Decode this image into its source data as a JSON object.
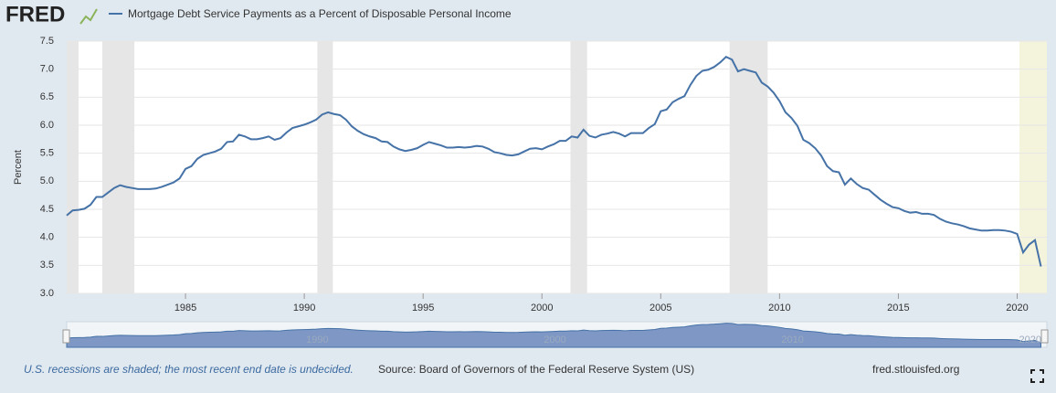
{
  "logo": "FRED",
  "chart_data": {
    "type": "line",
    "series": [
      {
        "name": "Mortgage Debt Service Payments as a Percent of Disposable Personal Income",
        "color": "#4572a7",
        "values": [
          4.39,
          4.48,
          4.49,
          4.51,
          4.58,
          4.72,
          4.72,
          4.8,
          4.88,
          4.93,
          4.9,
          4.88,
          4.86,
          4.86,
          4.86,
          4.87,
          4.9,
          4.94,
          4.98,
          5.05,
          5.22,
          5.27,
          5.4,
          5.47,
          5.5,
          5.53,
          5.58,
          5.7,
          5.71,
          5.83,
          5.8,
          5.75,
          5.75,
          5.77,
          5.8,
          5.74,
          5.77,
          5.87,
          5.95,
          5.98,
          6.01,
          6.05,
          6.1,
          6.19,
          6.23,
          6.2,
          6.18,
          6.1,
          5.98,
          5.9,
          5.84,
          5.8,
          5.77,
          5.71,
          5.7,
          5.62,
          5.57,
          5.54,
          5.56,
          5.59,
          5.65,
          5.7,
          5.67,
          5.64,
          5.6,
          5.6,
          5.61,
          5.6,
          5.61,
          5.63,
          5.62,
          5.58,
          5.52,
          5.5,
          5.47,
          5.46,
          5.48,
          5.53,
          5.58,
          5.59,
          5.57,
          5.62,
          5.66,
          5.72,
          5.72,
          5.8,
          5.78,
          5.92,
          5.81,
          5.78,
          5.83,
          5.85,
          5.88,
          5.85,
          5.8,
          5.86,
          5.86,
          5.86,
          5.95,
          6.02,
          6.25,
          6.28,
          6.41,
          6.47,
          6.52,
          6.72,
          6.88,
          6.97,
          6.99,
          7.04,
          7.12,
          7.22,
          7.17,
          6.96,
          7.0,
          6.97,
          6.94,
          6.76,
          6.69,
          6.58,
          6.43,
          6.23,
          6.13,
          5.99,
          5.74,
          5.68,
          5.59,
          5.46,
          5.27,
          5.18,
          5.16,
          4.94,
          5.05,
          4.95,
          4.88,
          4.85,
          4.76,
          4.67,
          4.6,
          4.54,
          4.52,
          4.47,
          4.44,
          4.45,
          4.42,
          4.42,
          4.4,
          4.33,
          4.28,
          4.25,
          4.23,
          4.2,
          4.16,
          4.14,
          4.12,
          4.12,
          4.13,
          4.13,
          4.12,
          4.1,
          4.06,
          3.73,
          3.87,
          3.95,
          3.48
        ]
      }
    ],
    "x": [
      1980,
      1980.25,
      1980.5,
      1980.75,
      1981,
      1981.25,
      1981.5,
      1981.75,
      1982,
      1982.25,
      1982.5,
      1982.75,
      1983,
      1983.25,
      1983.5,
      1983.75,
      1984,
      1984.25,
      1984.5,
      1984.75,
      1985,
      1985.25,
      1985.5,
      1985.75,
      1986,
      1986.25,
      1986.5,
      1986.75,
      1987,
      1987.25,
      1987.5,
      1987.75,
      1988,
      1988.25,
      1988.5,
      1988.75,
      1989,
      1989.25,
      1989.5,
      1989.75,
      1990,
      1990.25,
      1990.5,
      1990.75,
      1991,
      1991.25,
      1991.5,
      1991.75,
      1992,
      1992.25,
      1992.5,
      1992.75,
      1993,
      1993.25,
      1993.5,
      1993.75,
      1994,
      1994.25,
      1994.5,
      1994.75,
      1995,
      1995.25,
      1995.5,
      1995.75,
      1996,
      1996.25,
      1996.5,
      1996.75,
      1997,
      1997.25,
      1997.5,
      1997.75,
      1998,
      1998.25,
      1998.5,
      1998.75,
      1999,
      1999.25,
      1999.5,
      1999.75,
      2000,
      2000.25,
      2000.5,
      2000.75,
      2001,
      2001.25,
      2001.5,
      2001.75,
      2002,
      2002.25,
      2002.5,
      2002.75,
      2003,
      2003.25,
      2003.5,
      2003.75,
      2004,
      2004.25,
      2004.5,
      2004.75,
      2005,
      2005.25,
      2005.5,
      2005.75,
      2006,
      2006.25,
      2006.5,
      2006.75,
      2007,
      2007.25,
      2007.5,
      2007.75,
      2008,
      2008.25,
      2008.5,
      2008.75,
      2009,
      2009.25,
      2009.5,
      2009.75,
      2010,
      2010.25,
      2010.5,
      2010.75,
      2011,
      2011.25,
      2011.5,
      2011.75,
      2012,
      2012.25,
      2012.5,
      2012.75,
      2013,
      2013.25,
      2013.5,
      2013.75,
      2014,
      2014.25,
      2014.5,
      2014.75,
      2015,
      2015.25,
      2015.5,
      2015.75,
      2016,
      2016.25,
      2016.5,
      2016.75,
      2017,
      2017.25,
      2017.5,
      2017.75,
      2018,
      2018.25,
      2018.5,
      2018.75,
      2019,
      2019.25,
      2019.5,
      2019.75,
      2020,
      2020.25,
      2020.5,
      2020.75,
      2021
    ],
    "xlim": [
      1980,
      2021.25
    ],
    "xticks": [
      1985,
      1990,
      1995,
      2000,
      2005,
      2010,
      2015,
      2020
    ],
    "ylim": [
      3,
      7.5
    ],
    "yticks": [
      {
        "value": 3,
        "label": "3.0"
      },
      3.5,
      {
        "value": 4,
        "label": "4.0"
      },
      4.5,
      {
        "value": 5,
        "label": "5.0"
      },
      5.5,
      {
        "value": 6,
        "label": "6.0"
      },
      6.5,
      {
        "value": 7,
        "label": "7.0"
      },
      7.5
    ],
    "ylabel": "Percent",
    "grid": true,
    "recessions": [
      [
        1980,
        1980.5
      ],
      [
        1981.5,
        1982.85
      ],
      [
        1990.55,
        1991.2
      ],
      [
        2001.2,
        2001.9
      ],
      [
        2007.9,
        2009.5
      ]
    ],
    "recession_color": "#e6e6e6",
    "undecided_recession": [
      2020.1,
      2021.25
    ],
    "undecided_color": "#f4f3dc",
    "navigator_ticks": [
      1990,
      2000,
      2010,
      2020
    ],
    "recession_note": "U.S. recessions are shaded; the most recent end date is undecided.",
    "source": "Source: Board of Governors of the Federal Reserve System (US)",
    "site": "fred.stlouisfed.org"
  }
}
